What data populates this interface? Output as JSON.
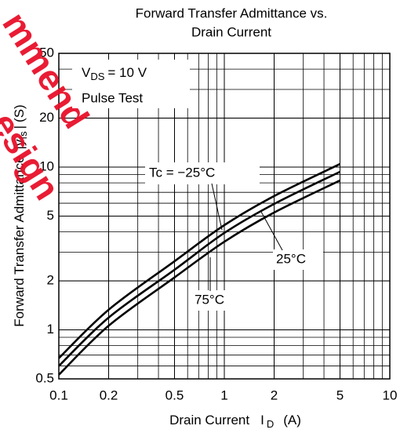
{
  "chart_data": {
    "type": "line",
    "title": [
      "Forward Transfer Admittance vs.",
      "Drain Current"
    ],
    "x_label": {
      "text": "Drain Current",
      "symbol": "I",
      "subscript": "D",
      "unit": "(A)"
    },
    "y_label": {
      "text": "Forward Transfer Admittance",
      "symbol": "|y",
      "subscript": "fs",
      "suffix": "|",
      "unit": "(S)"
    },
    "conditions": {
      "symbol": "V",
      "subscript": "DS",
      "rest": "= 10 V",
      "note": "Pulse Test"
    },
    "watermark": [
      "mmend",
      "esign"
    ],
    "log_x": true,
    "log_y": true,
    "grid": true,
    "minor_grid": true,
    "xlim": [
      0.1,
      10
    ],
    "ylim": [
      0.5,
      50
    ],
    "xticks": [
      0.1,
      0.2,
      0.5,
      1,
      2,
      5,
      10
    ],
    "yticks": [
      0.5,
      1,
      2,
      5,
      10,
      20,
      50
    ],
    "x": [
      0.1,
      0.2,
      0.5,
      1,
      2,
      5
    ],
    "series": [
      {
        "name": "Tc = −25°C",
        "color": "#000000",
        "values": [
          0.67,
          1.33,
          2.64,
          4.4,
          6.64,
          10.45
        ]
      },
      {
        "name": "25°C",
        "color": "#000000",
        "values": [
          0.6,
          1.19,
          2.34,
          3.94,
          5.94,
          9.36
        ]
      },
      {
        "name": "75°C",
        "color": "#000000",
        "values": [
          0.53,
          1.06,
          2.1,
          3.48,
          5.26,
          8.28
        ]
      }
    ]
  }
}
